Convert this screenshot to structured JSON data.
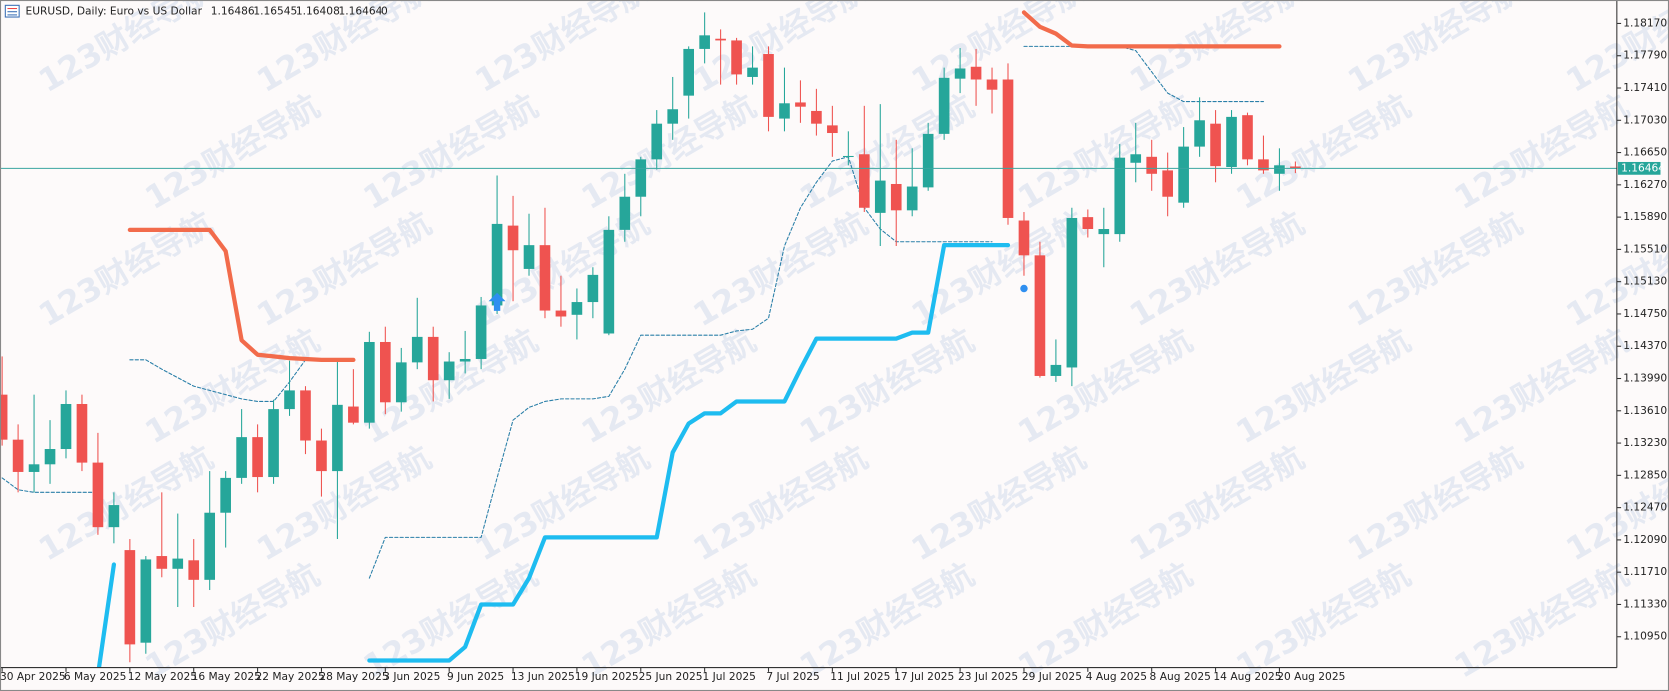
{
  "chart_data": {
    "type": "candlestick",
    "title": "EURUSD, Daily: Euro vs US Dollar",
    "header_extra": 0,
    "watermark": "123财经导航",
    "up_color": "#26a69a",
    "down_color": "#ef5350",
    "categories": [
      "30 Apr 2025",
      null,
      null,
      null,
      "6 May 2025",
      null,
      null,
      null,
      "12 May 2025",
      null,
      null,
      null,
      "16 May 2025",
      null,
      null,
      null,
      "22 May 2025",
      null,
      null,
      null,
      "28 May 2025",
      null,
      null,
      null,
      "3 Jun 2025",
      null,
      null,
      null,
      "9 Jun 2025",
      null,
      null,
      null,
      "13 Jun 2025",
      null,
      null,
      null,
      "19 Jun 2025",
      null,
      null,
      null,
      "25 Jun 2025",
      null,
      null,
      null,
      "1 Jul 2025",
      null,
      null,
      null,
      "7 Jul 2025",
      null,
      null,
      null,
      "11 Jul 2025",
      null,
      null,
      null,
      "17 Jul 2025",
      null,
      null,
      null,
      "23 Jul 2025",
      null,
      null,
      null,
      "29 Jul 2025",
      null,
      null,
      null,
      "4 Aug 2025",
      null,
      null,
      null,
      "8 Aug 2025",
      null,
      null,
      null,
      "14 Aug 2025",
      null,
      null,
      null,
      "20 Aug 2025",
      null
    ],
    "series": [
      {
        "open": [
          1.138,
          1.1327,
          1.1289,
          1.1298,
          1.1316,
          1.1369,
          1.13,
          1.1224,
          1.1197,
          1.1088,
          1.119,
          1.1175,
          1.1185,
          1.1162,
          1.1241,
          1.1282,
          1.133,
          1.1283,
          1.1363,
          1.1385,
          1.1326,
          1.129,
          1.1366,
          1.1347,
          1.1442,
          1.1371,
          1.1418,
          1.1448,
          1.1397,
          1.1419,
          1.1422,
          1.1485,
          1.1579,
          1.1528,
          1.1556,
          1.1479,
          1.1474,
          1.1489,
          1.1452,
          1.1574,
          1.1613,
          1.1657,
          1.1699,
          1.1732,
          1.1787,
          1.1799,
          1.1797,
          1.1754,
          1.1781,
          1.1705,
          1.1724,
          1.1714,
          1.1697,
          1.166,
          1.1663,
          1.1594,
          1.1628,
          1.1597,
          1.1624,
          1.1687,
          1.1752,
          1.1766,
          1.1751,
          1.1751,
          1.1585,
          1.1544,
          1.1402,
          1.1412,
          1.1589,
          1.1569,
          1.1569,
          1.1653,
          1.166,
          1.1644,
          1.1606,
          1.1672,
          1.1699,
          1.1648,
          1.1709,
          1.1657,
          1.164,
          1.16486
        ],
        "high": [
          1.1425,
          1.1345,
          1.138,
          1.135,
          1.1385,
          1.138,
          1.1335,
          1.1265,
          1.121,
          1.119,
          1.1265,
          1.124,
          1.121,
          1.129,
          1.129,
          1.1363,
          1.1345,
          1.1374,
          1.142,
          1.139,
          1.134,
          1.1419,
          1.141,
          1.1454,
          1.146,
          1.1435,
          1.1494,
          1.146,
          1.143,
          1.1455,
          1.1495,
          1.1638,
          1.1614,
          1.1593,
          1.16,
          1.152,
          1.1505,
          1.153,
          1.159,
          1.164,
          1.166,
          1.1715,
          1.1754,
          1.179,
          1.183,
          1.181,
          1.18,
          1.179,
          1.179,
          1.1765,
          1.175,
          1.174,
          1.172,
          1.169,
          1.172,
          1.1722,
          1.168,
          1.167,
          1.17,
          1.1765,
          1.1788,
          1.1787,
          1.1765,
          1.177,
          1.1595,
          1.156,
          1.1445,
          1.16,
          1.1598,
          1.16,
          1.1675,
          1.17,
          1.168,
          1.1665,
          1.1695,
          1.173,
          1.1715,
          1.1715,
          1.1712,
          1.1685,
          1.167,
          1.16545
        ],
        "low": [
          1.132,
          1.1265,
          1.1265,
          1.1275,
          1.1305,
          1.129,
          1.1215,
          1.1205,
          1.1065,
          1.1075,
          1.1165,
          1.113,
          1.113,
          1.115,
          1.12,
          1.1275,
          1.1265,
          1.1275,
          1.1355,
          1.131,
          1.126,
          1.121,
          1.1345,
          1.134,
          1.1357,
          1.136,
          1.141,
          1.1372,
          1.1375,
          1.1405,
          1.141,
          1.1475,
          1.149,
          1.152,
          1.147,
          1.146,
          1.1445,
          1.147,
          1.145,
          1.156,
          1.159,
          1.1645,
          1.168,
          1.1705,
          1.177,
          1.1745,
          1.1745,
          1.1745,
          1.169,
          1.169,
          1.17,
          1.1685,
          1.166,
          1.165,
          1.1595,
          1.1555,
          1.1555,
          1.159,
          1.162,
          1.168,
          1.1735,
          1.172,
          1.1711,
          1.158,
          1.152,
          1.14,
          1.1395,
          1.139,
          1.1565,
          1.153,
          1.156,
          1.163,
          1.162,
          1.159,
          1.16,
          1.166,
          1.163,
          1.164,
          1.165,
          1.164,
          1.162,
          1.16408
        ],
        "close": [
          1.1327,
          1.1289,
          1.1298,
          1.1316,
          1.1369,
          1.13,
          1.1224,
          1.125,
          1.1086,
          1.1186,
          1.1175,
          1.1187,
          1.1162,
          1.1241,
          1.1282,
          1.133,
          1.1283,
          1.1363,
          1.1385,
          1.1326,
          1.129,
          1.1368,
          1.1347,
          1.1442,
          1.1371,
          1.1418,
          1.1448,
          1.1397,
          1.1419,
          1.1422,
          1.1485,
          1.1581,
          1.155,
          1.1556,
          1.1479,
          1.1472,
          1.1489,
          1.1521,
          1.1574,
          1.1613,
          1.1657,
          1.1699,
          1.1716,
          1.1787,
          1.1803,
          1.1797,
          1.1757,
          1.1765,
          1.1707,
          1.1723,
          1.1719,
          1.1699,
          1.1688,
          1.1661,
          1.16,
          1.1632,
          1.1597,
          1.1625,
          1.1687,
          1.1753,
          1.1764,
          1.1751,
          1.1739,
          1.1588,
          1.1544,
          1.1402,
          1.1415,
          1.1588,
          1.1575,
          1.1575,
          1.1659,
          1.1663,
          1.164,
          1.1613,
          1.1672,
          1.1703,
          1.1649,
          1.1707,
          1.1657,
          1.1644,
          1.165,
          1.16464
        ]
      }
    ],
    "overlays": [
      {
        "color": "#f26b4b",
        "width": 4,
        "dashed": false,
        "values": [
          null,
          null,
          null,
          null,
          null,
          null,
          null,
          null,
          1.1574,
          1.1574,
          1.1574,
          1.1574,
          1.1574,
          1.1574,
          1.1549,
          1.1444,
          1.1427,
          1.1425,
          1.1423,
          1.1422,
          1.1421,
          1.1421,
          1.1421,
          null,
          null,
          null,
          null,
          null,
          null,
          null,
          null,
          null,
          null,
          null,
          null,
          null,
          null,
          null,
          null,
          null,
          null,
          null,
          null,
          null,
          null,
          null,
          null,
          null,
          null,
          null,
          null,
          null,
          null,
          null,
          null,
          null,
          null,
          null,
          null,
          null,
          null,
          null,
          null,
          null,
          1.183,
          1.1813,
          1.1805,
          1.1791,
          1.179,
          1.179,
          1.179,
          1.179,
          1.179,
          1.179,
          1.179,
          1.179,
          1.179,
          1.179,
          1.179,
          1.179,
          1.179,
          null
        ]
      },
      {
        "color": "#1ebcf0",
        "width": 4,
        "dashed": false,
        "values": [
          null,
          null,
          null,
          null,
          null,
          null,
          1.105,
          1.118,
          null,
          null,
          null,
          null,
          null,
          null,
          null,
          null,
          null,
          null,
          null,
          null,
          null,
          null,
          null,
          1.1067,
          1.1067,
          1.1067,
          1.1067,
          1.1067,
          1.1067,
          1.1083,
          1.1133,
          1.1133,
          1.1133,
          1.1164,
          1.1212,
          1.1212,
          1.1212,
          1.1212,
          1.1212,
          1.1212,
          1.1212,
          1.1212,
          1.1312,
          1.1346,
          1.1358,
          1.1358,
          1.1372,
          1.1372,
          1.1372,
          1.1372,
          1.141,
          1.1446,
          1.1446,
          1.1446,
          1.1446,
          1.1446,
          1.1446,
          1.1453,
          1.1453,
          1.1556,
          1.1556,
          1.1556,
          1.1556,
          1.1556,
          null,
          null,
          null,
          null,
          null,
          null,
          null,
          null,
          null,
          null,
          null,
          null,
          null,
          null,
          null,
          null,
          null,
          null
        ]
      },
      {
        "color": "#2a7fa8",
        "width": 1,
        "dashed": true,
        "values": [
          1.1282,
          1.1268,
          1.1265,
          1.1265,
          1.1265,
          1.1265,
          1.1265,
          null,
          null,
          null,
          null,
          null,
          null,
          null,
          null,
          null,
          null,
          null,
          null,
          null,
          null,
          null,
          null,
          1.1164,
          1.1212,
          1.1212,
          1.1212,
          1.1212,
          1.1212,
          1.1212,
          1.1212,
          1.1282,
          1.135,
          1.1365,
          1.1372,
          1.1375,
          1.1375,
          1.1375,
          1.1378,
          1.141,
          1.145,
          1.145,
          1.145,
          1.145,
          1.145,
          1.145,
          1.1455,
          1.1457,
          1.147,
          1.1555,
          1.16,
          1.163,
          1.1655,
          1.166,
          1.16,
          1.1575,
          1.156,
          1.156,
          1.156,
          1.156,
          1.156,
          1.156,
          1.156,
          null,
          null,
          null,
          null,
          null,
          null,
          null,
          null,
          null,
          null,
          null,
          null,
          null,
          null,
          null,
          null,
          null,
          null,
          null
        ]
      },
      {
        "color": "#2a7fa8",
        "width": 1,
        "dashed": true,
        "values": [
          null,
          null,
          null,
          null,
          null,
          null,
          null,
          null,
          1.1421,
          1.1421,
          1.141,
          1.14,
          1.139,
          1.1385,
          1.138,
          1.1375,
          1.1372,
          1.1372,
          1.1395,
          1.1421,
          1.1421,
          1.1421,
          1.1421,
          null,
          null,
          null,
          null,
          null,
          null,
          null,
          null,
          null,
          null,
          null,
          null,
          null,
          null,
          null,
          null,
          null,
          null,
          null,
          null,
          null,
          null,
          null,
          null,
          null,
          null,
          null,
          null,
          null,
          null,
          null,
          null,
          null,
          null,
          null,
          null,
          null,
          null,
          null,
          null,
          null,
          1.179,
          1.179,
          1.179,
          1.179,
          1.179,
          1.179,
          1.179,
          1.1785,
          1.176,
          1.1735,
          1.1725,
          1.1725,
          1.1725,
          1.1725,
          1.1725,
          1.1725,
          null,
          null
        ]
      }
    ],
    "ylim": [
      1.10587,
      1.18446
    ],
    "yticks": [
      {
        "value": 1.1817,
        "label": "1.18170"
      },
      {
        "value": 1.1779,
        "label": "1.17790"
      },
      {
        "value": 1.1741,
        "label": "1.17410"
      },
      {
        "value": 1.1703,
        "label": "1.17030"
      },
      {
        "value": 1.1665,
        "label": "1.16650"
      },
      {
        "value": 1.1627,
        "label": "1.16270"
      },
      {
        "value": 1.1589,
        "label": "1.15890"
      },
      {
        "value": 1.1551,
        "label": "1.15510"
      },
      {
        "value": 1.1513,
        "label": "1.15130"
      },
      {
        "value": 1.1475,
        "label": "1.14750"
      },
      {
        "value": 1.1437,
        "label": "1.14370"
      },
      {
        "value": 1.1399,
        "label": "1.13990"
      },
      {
        "value": 1.1361,
        "label": "1.13610"
      },
      {
        "value": 1.1323,
        "label": "1.13230"
      },
      {
        "value": 1.1285,
        "label": "1.12850"
      },
      {
        "value": 1.1247,
        "label": "1.12470"
      },
      {
        "value": 1.1209,
        "label": "1.12090"
      },
      {
        "value": 1.1171,
        "label": "1.11710"
      },
      {
        "value": 1.1133,
        "label": "1.11330"
      },
      {
        "value": 1.1095,
        "label": "1.10950"
      }
    ],
    "grid": false
  }
}
